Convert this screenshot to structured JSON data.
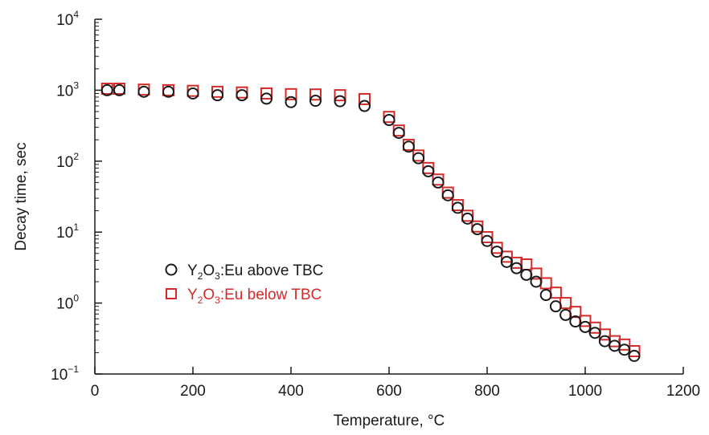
{
  "chart_data": {
    "type": "scatter",
    "xlabel": "Temperature, °C",
    "ylabel": "Decay time, sec",
    "xlim": [
      0,
      1200
    ],
    "ylim_log10": [
      -1,
      4
    ],
    "y_scale": "log",
    "grid": false,
    "legend_position": "center-left",
    "x_ticks": [
      0,
      200,
      400,
      600,
      800,
      1000,
      1200
    ],
    "x_tick_labels": [
      "0",
      "200",
      "400",
      "600",
      "800",
      "1000",
      "1200"
    ],
    "y_ticks_exp": [
      -1,
      0,
      1,
      2,
      3,
      4
    ],
    "y_tick_base": "10",
    "y_tick_exponents": [
      "−1",
      "0",
      "1",
      "2",
      "3",
      "4"
    ],
    "series": [
      {
        "name_parts": [
          "Y",
          "2",
          "O",
          "3",
          ":Eu above TBC"
        ],
        "marker": "circle",
        "color": "#1a1a1a",
        "x": [
          25,
          50,
          100,
          150,
          200,
          250,
          300,
          350,
          400,
          450,
          500,
          550,
          600,
          620,
          640,
          660,
          680,
          700,
          720,
          740,
          760,
          780,
          800,
          820,
          840,
          860,
          880,
          900,
          920,
          940,
          960,
          980,
          1000,
          1020,
          1040,
          1060,
          1080,
          1100
        ],
        "y": [
          1000,
          1000,
          950,
          950,
          900,
          850,
          850,
          760,
          680,
          710,
          700,
          600,
          380,
          250,
          160,
          110,
          72,
          50,
          33,
          22,
          15.5,
          11,
          7.5,
          5.3,
          3.8,
          3.1,
          2.5,
          2.0,
          1.3,
          0.9,
          0.68,
          0.55,
          0.46,
          0.38,
          0.29,
          0.25,
          0.22,
          0.18
        ]
      },
      {
        "name_parts": [
          "Y",
          "2",
          "O",
          "3",
          ":Eu below TBC"
        ],
        "marker": "square",
        "color": "#d42a2a",
        "x": [
          25,
          50,
          100,
          150,
          200,
          250,
          300,
          350,
          400,
          450,
          500,
          550,
          600,
          620,
          640,
          660,
          680,
          700,
          720,
          740,
          760,
          780,
          800,
          820,
          840,
          860,
          880,
          900,
          920,
          940,
          960,
          980,
          1000,
          1020,
          1040,
          1060,
          1080,
          1100
        ],
        "y": [
          1050,
          1050,
          1020,
          1000,
          980,
          950,
          930,
          900,
          880,
          870,
          850,
          750,
          420,
          270,
          170,
          120,
          80,
          55,
          36,
          24,
          17,
          12,
          8.5,
          6.0,
          4.5,
          3.7,
          3.5,
          2.6,
          1.9,
          1.4,
          1.0,
          0.75,
          0.56,
          0.45,
          0.36,
          0.29,
          0.26,
          0.21
        ]
      }
    ]
  }
}
